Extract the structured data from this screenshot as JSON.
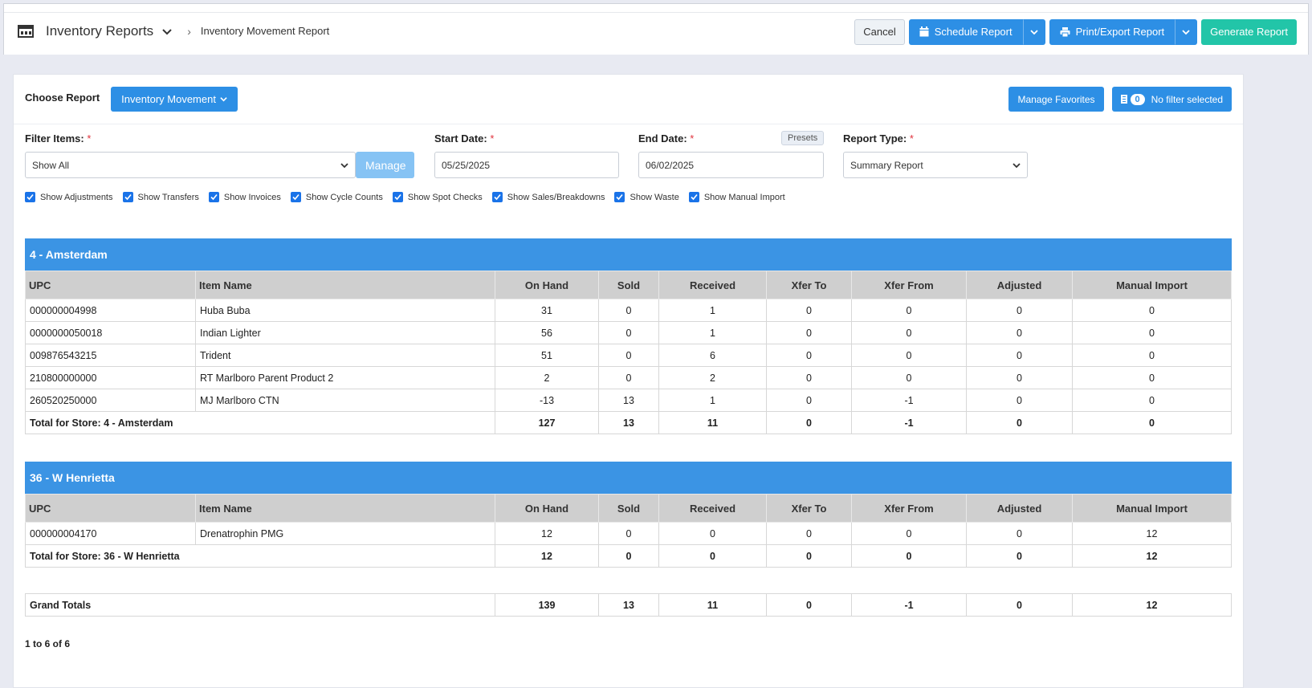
{
  "header": {
    "module_title": "Inventory Reports",
    "breadcrumb": "Inventory Movement Report",
    "cancel_label": "Cancel",
    "schedule_label": "Schedule Report",
    "print_label": "Print/Export Report",
    "generate_label": "Generate Report"
  },
  "panel": {
    "choose_label": "Choose Report",
    "report_selected": "Inventory Movement",
    "manage_favorites_label": "Manage Favorites",
    "filter_count": "0",
    "filter_status": "No filter selected"
  },
  "filters": {
    "filter_items_label": "Filter Items:",
    "filter_items_value": "Show All",
    "manage_label": "Manage",
    "start_label": "Start Date:",
    "start_value": "05/25/2025",
    "end_label": "End Date:",
    "end_value": "06/02/2025",
    "presets_label": "Presets",
    "report_type_label": "Report Type:",
    "report_type_value": "Summary Report",
    "required_mark": "*"
  },
  "checkboxes": [
    {
      "label": "Show Adjustments",
      "checked": true
    },
    {
      "label": "Show Transfers",
      "checked": true
    },
    {
      "label": "Show Invoices",
      "checked": true
    },
    {
      "label": "Show Cycle Counts",
      "checked": true
    },
    {
      "label": "Show Spot Checks",
      "checked": true
    },
    {
      "label": "Show Sales/Breakdowns",
      "checked": true
    },
    {
      "label": "Show Waste",
      "checked": true
    },
    {
      "label": "Show Manual Import",
      "checked": true
    }
  ],
  "columns": [
    "UPC",
    "Item Name",
    "On Hand",
    "Sold",
    "Received",
    "Xfer To",
    "Xfer From",
    "Adjusted",
    "Manual Import"
  ],
  "stores": [
    {
      "name": "4 - Amsterdam",
      "rows": [
        [
          "000000004998",
          "Huba Buba",
          "31",
          "0",
          "1",
          "0",
          "0",
          "0",
          "0"
        ],
        [
          "0000000050018",
          "Indian Lighter",
          "56",
          "0",
          "1",
          "0",
          "0",
          "0",
          "0"
        ],
        [
          "009876543215",
          "Trident",
          "51",
          "0",
          "6",
          "0",
          "0",
          "0",
          "0"
        ],
        [
          "210800000000",
          "RT Marlboro Parent Product 2",
          "2",
          "0",
          "2",
          "0",
          "0",
          "0",
          "0"
        ],
        [
          "260520250000",
          "MJ Marlboro CTN",
          "-13",
          "13",
          "1",
          "0",
          "-1",
          "0",
          "0"
        ]
      ],
      "total_label": "Total for Store: 4 - Amsterdam",
      "totals": [
        "127",
        "13",
        "11",
        "0",
        "-1",
        "0",
        "0"
      ]
    },
    {
      "name": "36 - W Henrietta",
      "rows": [
        [
          "000000004170",
          "Drenatrophin PMG",
          "12",
          "0",
          "0",
          "0",
          "0",
          "0",
          "12"
        ]
      ],
      "total_label": "Total for Store: 36 - W Henrietta",
      "totals": [
        "12",
        "0",
        "0",
        "0",
        "0",
        "0",
        "12"
      ]
    }
  ],
  "grand_totals": {
    "label": "Grand Totals",
    "values": [
      "139",
      "13",
      "11",
      "0",
      "-1",
      "0",
      "12"
    ]
  },
  "pager": "1 to 6 of 6",
  "colors": {
    "accent": "#2d8fe5",
    "teal": "#22c5a8",
    "store_header": "#3b94e4"
  }
}
